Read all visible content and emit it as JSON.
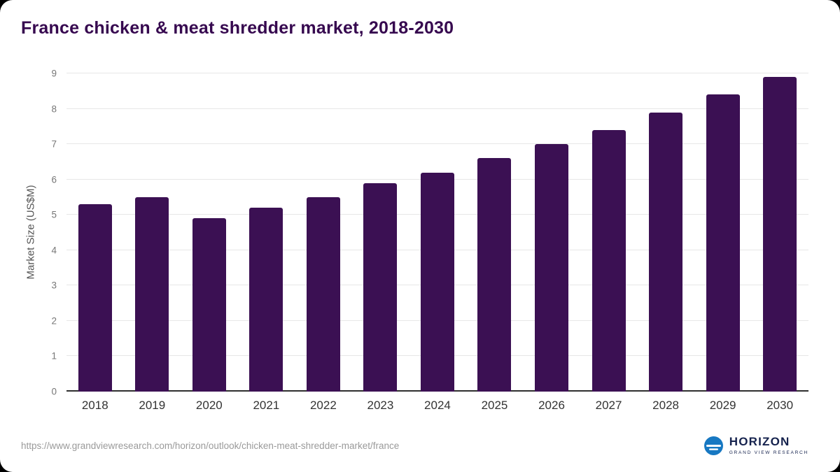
{
  "title": "France chicken & meat shredder market, 2018-2030",
  "source_url": "https://www.grandviewresearch.com/horizon/outlook/chicken-meat-shredder-market/france",
  "logo": {
    "name": "HORIZON",
    "subtitle": "GRAND VIEW RESEARCH",
    "icon": "horizon-globe-icon"
  },
  "colors": {
    "bar": "#3b1053",
    "title": "#36084f",
    "grid": "#e7e7e7",
    "axis": "#2f2f2f",
    "tick": "#777777",
    "logo_blue": "#1778c2"
  },
  "chart_data": {
    "type": "bar",
    "title": "France chicken & meat shredder market, 2018-2030",
    "categories": [
      "2018",
      "2019",
      "2020",
      "2021",
      "2022",
      "2023",
      "2024",
      "2025",
      "2026",
      "2027",
      "2028",
      "2029",
      "2030"
    ],
    "values": [
      5.3,
      5.5,
      4.9,
      5.2,
      5.5,
      5.9,
      6.2,
      6.6,
      7.0,
      7.4,
      7.9,
      8.4,
      8.9
    ],
    "xlabel": "",
    "ylabel": "Market Size (US$M)",
    "ylim": [
      0,
      9
    ],
    "yticks": [
      0,
      1,
      2,
      3,
      4,
      5,
      6,
      7,
      8,
      9
    ],
    "grid": true,
    "legend": false
  }
}
